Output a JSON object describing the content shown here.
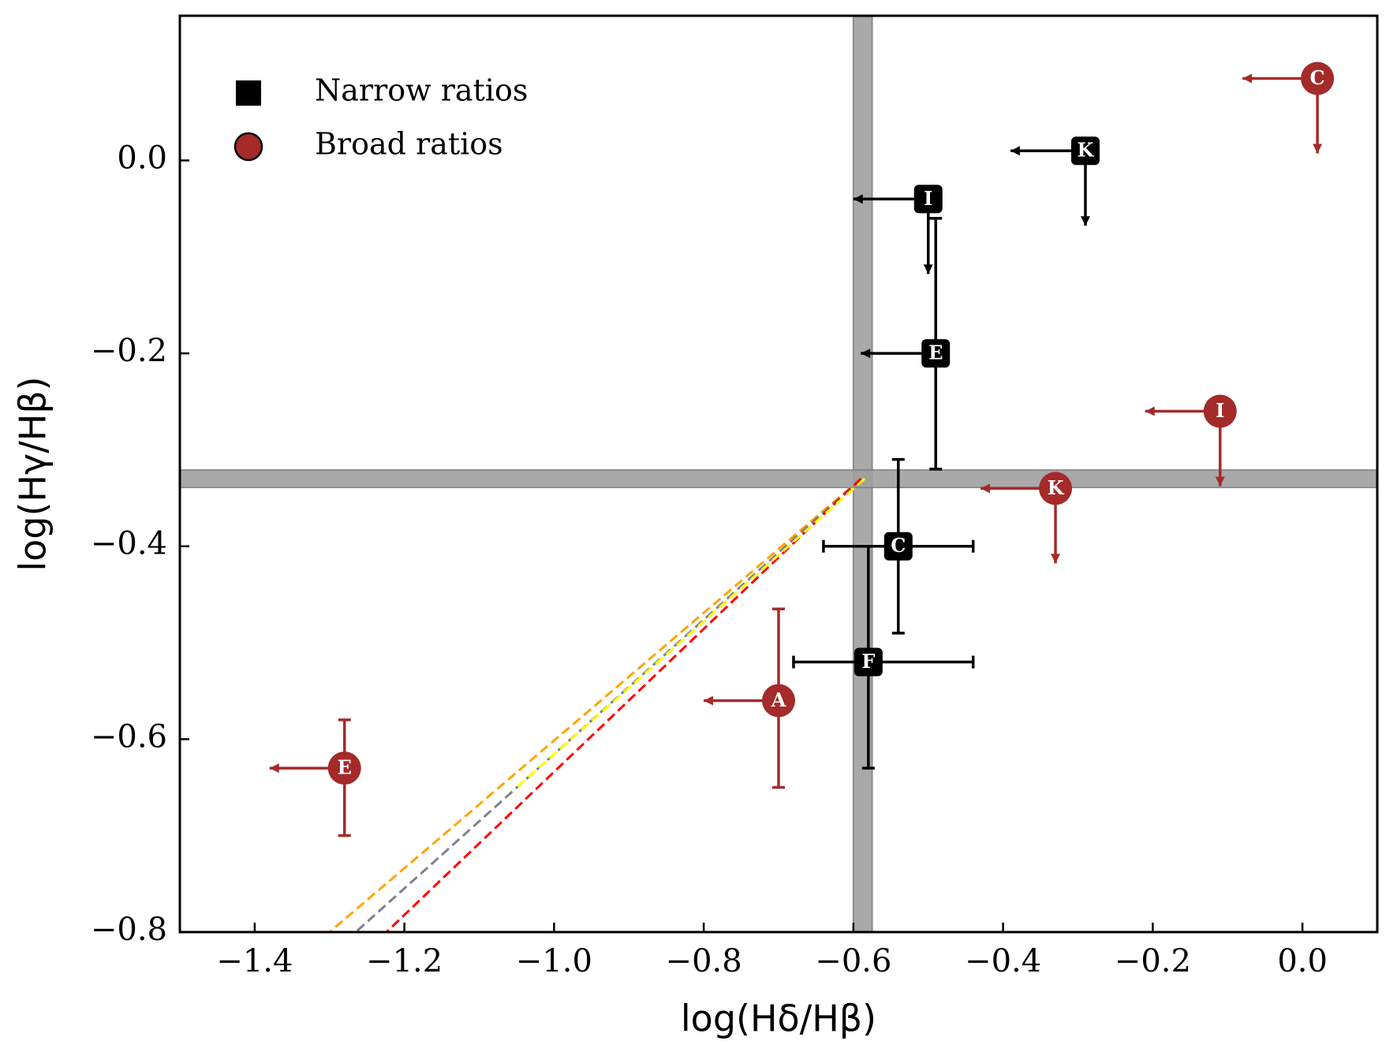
{
  "chart_data": {
    "type": "scatter",
    "xlabel": "log(Hδ/Hβ)",
    "ylabel": "log(Hγ/Hβ)",
    "xlim": [
      -1.5,
      0.1
    ],
    "ylim": [
      -0.8,
      0.15
    ],
    "xticks": [
      {
        "value": -1.4,
        "label": "−1.4"
      },
      {
        "value": -1.2,
        "label": "−1.2"
      },
      {
        "value": -1.0,
        "label": "−1.0"
      },
      {
        "value": -0.8,
        "label": "−0.8"
      },
      {
        "value": -0.6,
        "label": "−0.6"
      },
      {
        "value": -0.4,
        "label": "−0.4"
      },
      {
        "value": -0.2,
        "label": "−0.2"
      },
      {
        "value": 0,
        "label": "0.0"
      }
    ],
    "yticks": [
      {
        "value": 0,
        "label": "0.0"
      },
      {
        "value": -0.2,
        "label": "−0.2"
      },
      {
        "value": -0.4,
        "label": "−0.4"
      },
      {
        "value": -0.6,
        "label": "−0.6"
      },
      {
        "value": -0.8,
        "label": "−0.8"
      }
    ],
    "legend": "upper left",
    "bands": [
      {
        "axis": "x",
        "from": -0.6,
        "to": -0.575,
        "color": "#a0a0a0"
      },
      {
        "axis": "y",
        "from": -0.339,
        "to": -0.321,
        "color": "#a0a0a0"
      }
    ],
    "lines": [
      {
        "color": "#ffa500",
        "x": [
          -0.59,
          -1.3
        ],
        "y": [
          -0.33,
          -0.8
        ]
      },
      {
        "color": "#808090",
        "x": [
          -0.59,
          -1.265
        ],
        "y": [
          -0.33,
          -0.8
        ]
      },
      {
        "color": "#ff0000",
        "x": [
          -0.59,
          -1.224
        ],
        "y": [
          -0.33,
          -0.8
        ]
      },
      {
        "color": "#ffff00",
        "x": [
          -0.585,
          -1.05
        ],
        "y": [
          -0.33,
          -0.65
        ]
      }
    ],
    "series": [
      {
        "name": "Narrow ratios",
        "marker": "square",
        "color": "#000000",
        "points": [
          {
            "label": "K",
            "x": -0.29,
            "y": 0.01,
            "xlimit": true,
            "ylimit": true
          },
          {
            "label": "I",
            "x": -0.5,
            "y": -0.04,
            "xlimit": true,
            "ylimit": true
          },
          {
            "label": "E",
            "x": -0.49,
            "y": -0.2,
            "yerr": [
              0.12,
              0.14
            ],
            "xlimit": true
          },
          {
            "label": "C",
            "x": -0.54,
            "y": -0.4,
            "xerr": [
              0.1,
              0.1
            ],
            "yerr": [
              0.09,
              0.09
            ]
          },
          {
            "label": "F",
            "x": -0.58,
            "y": -0.52,
            "xerr": [
              0.1,
              0.14
            ],
            "yerr": [
              0.11,
              0.12
            ]
          }
        ]
      },
      {
        "name": "Broad ratios",
        "marker": "circle",
        "color": "#a52a2a",
        "points": [
          {
            "label": "C",
            "x": 0.02,
            "y": 0.085,
            "xlimit": true,
            "ylimit": true
          },
          {
            "label": "I",
            "x": -0.11,
            "y": -0.26,
            "xlimit": true,
            "ylimit": true
          },
          {
            "label": "K",
            "x": -0.33,
            "y": -0.34,
            "xlimit": true,
            "ylimit": true
          },
          {
            "label": "A",
            "x": -0.7,
            "y": -0.56,
            "yerr": [
              0.09,
              0.095
            ],
            "xlimit": true
          },
          {
            "label": "E",
            "x": -1.28,
            "y": -0.63,
            "yerr": [
              0.07,
              0.05
            ],
            "xlimit": true
          }
        ]
      }
    ]
  }
}
